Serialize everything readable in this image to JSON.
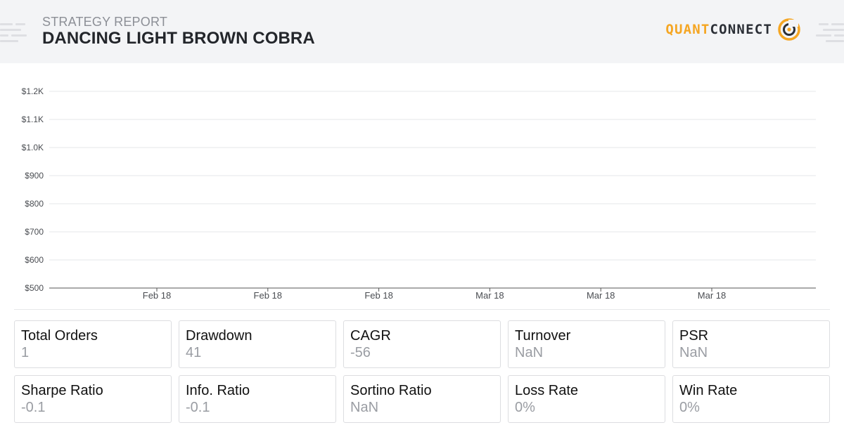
{
  "header": {
    "subtitle": "STRATEGY REPORT",
    "title": "DANCING LIGHT BROWN COBRA",
    "logo": {
      "part1": "QUANT",
      "part2": "CONNECT",
      "accent": "#f5a623",
      "dark": "#2b2f36"
    }
  },
  "chart_data": {
    "type": "line",
    "title": "",
    "xlabel": "",
    "ylabel": "",
    "y_tick_labels": [
      "$1.2K",
      "$1.1K",
      "$1.0K",
      "$900",
      "$800",
      "$700",
      "$600",
      "$500"
    ],
    "y_tick_values": [
      1200,
      1100,
      1000,
      900,
      800,
      700,
      600,
      500
    ],
    "x_tick_labels": [
      "Feb 18",
      "Feb 18",
      "Feb 18",
      "Mar 18",
      "Mar 18",
      "Mar 18"
    ],
    "ylim": [
      500,
      1200
    ],
    "grid": true,
    "series": []
  },
  "stats": [
    {
      "label": "Total Orders",
      "value": "1"
    },
    {
      "label": "Drawdown",
      "value": "41"
    },
    {
      "label": "CAGR",
      "value": "-56"
    },
    {
      "label": "Turnover",
      "value": "NaN"
    },
    {
      "label": "PSR",
      "value": "NaN"
    },
    {
      "label": "Sharpe Ratio",
      "value": "-0.1"
    },
    {
      "label": "Info. Ratio",
      "value": "-0.1"
    },
    {
      "label": "Sortino Ratio",
      "value": "NaN"
    },
    {
      "label": "Loss Rate",
      "value": "0%"
    },
    {
      "label": "Win Rate",
      "value": "0%"
    }
  ]
}
